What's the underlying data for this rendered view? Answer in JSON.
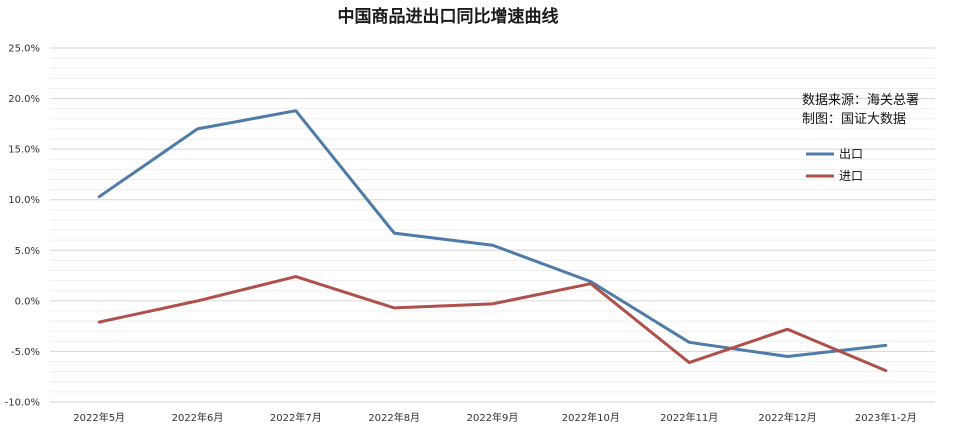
{
  "chart_data": {
    "type": "line",
    "title": "中国商品进出口同比增速曲线",
    "categories": [
      "2022年5月",
      "2022年6月",
      "2022年7月",
      "2022年8月",
      "2022年9月",
      "2022年10月",
      "2022年11月",
      "2022年12月",
      "2023年1-2月"
    ],
    "series": [
      {
        "name": "出口",
        "color": "#4e7ba7",
        "values": [
          10.3,
          17.0,
          18.8,
          6.7,
          5.5,
          1.9,
          -4.1,
          -5.5,
          -4.4
        ]
      },
      {
        "name": "进口",
        "color": "#b0504b",
        "values": [
          -2.1,
          0.0,
          2.4,
          -0.7,
          -0.3,
          1.7,
          -6.1,
          -2.8,
          -6.9
        ]
      }
    ],
    "ylim": [
      -10,
      25
    ],
    "yticks": [
      -10,
      -5,
      0,
      5,
      10,
      15,
      20,
      25
    ],
    "ytick_labels": [
      "-10.0%",
      "-5.0%",
      "0.0%",
      "5.0%",
      "10.0%",
      "15.0%",
      "20.0%",
      "25.0%"
    ],
    "xlabel": "",
    "ylabel": "",
    "grid": true,
    "legend_position": "right",
    "notes": [
      "数据来源：海关总署",
      "制图：国证大数据"
    ]
  }
}
